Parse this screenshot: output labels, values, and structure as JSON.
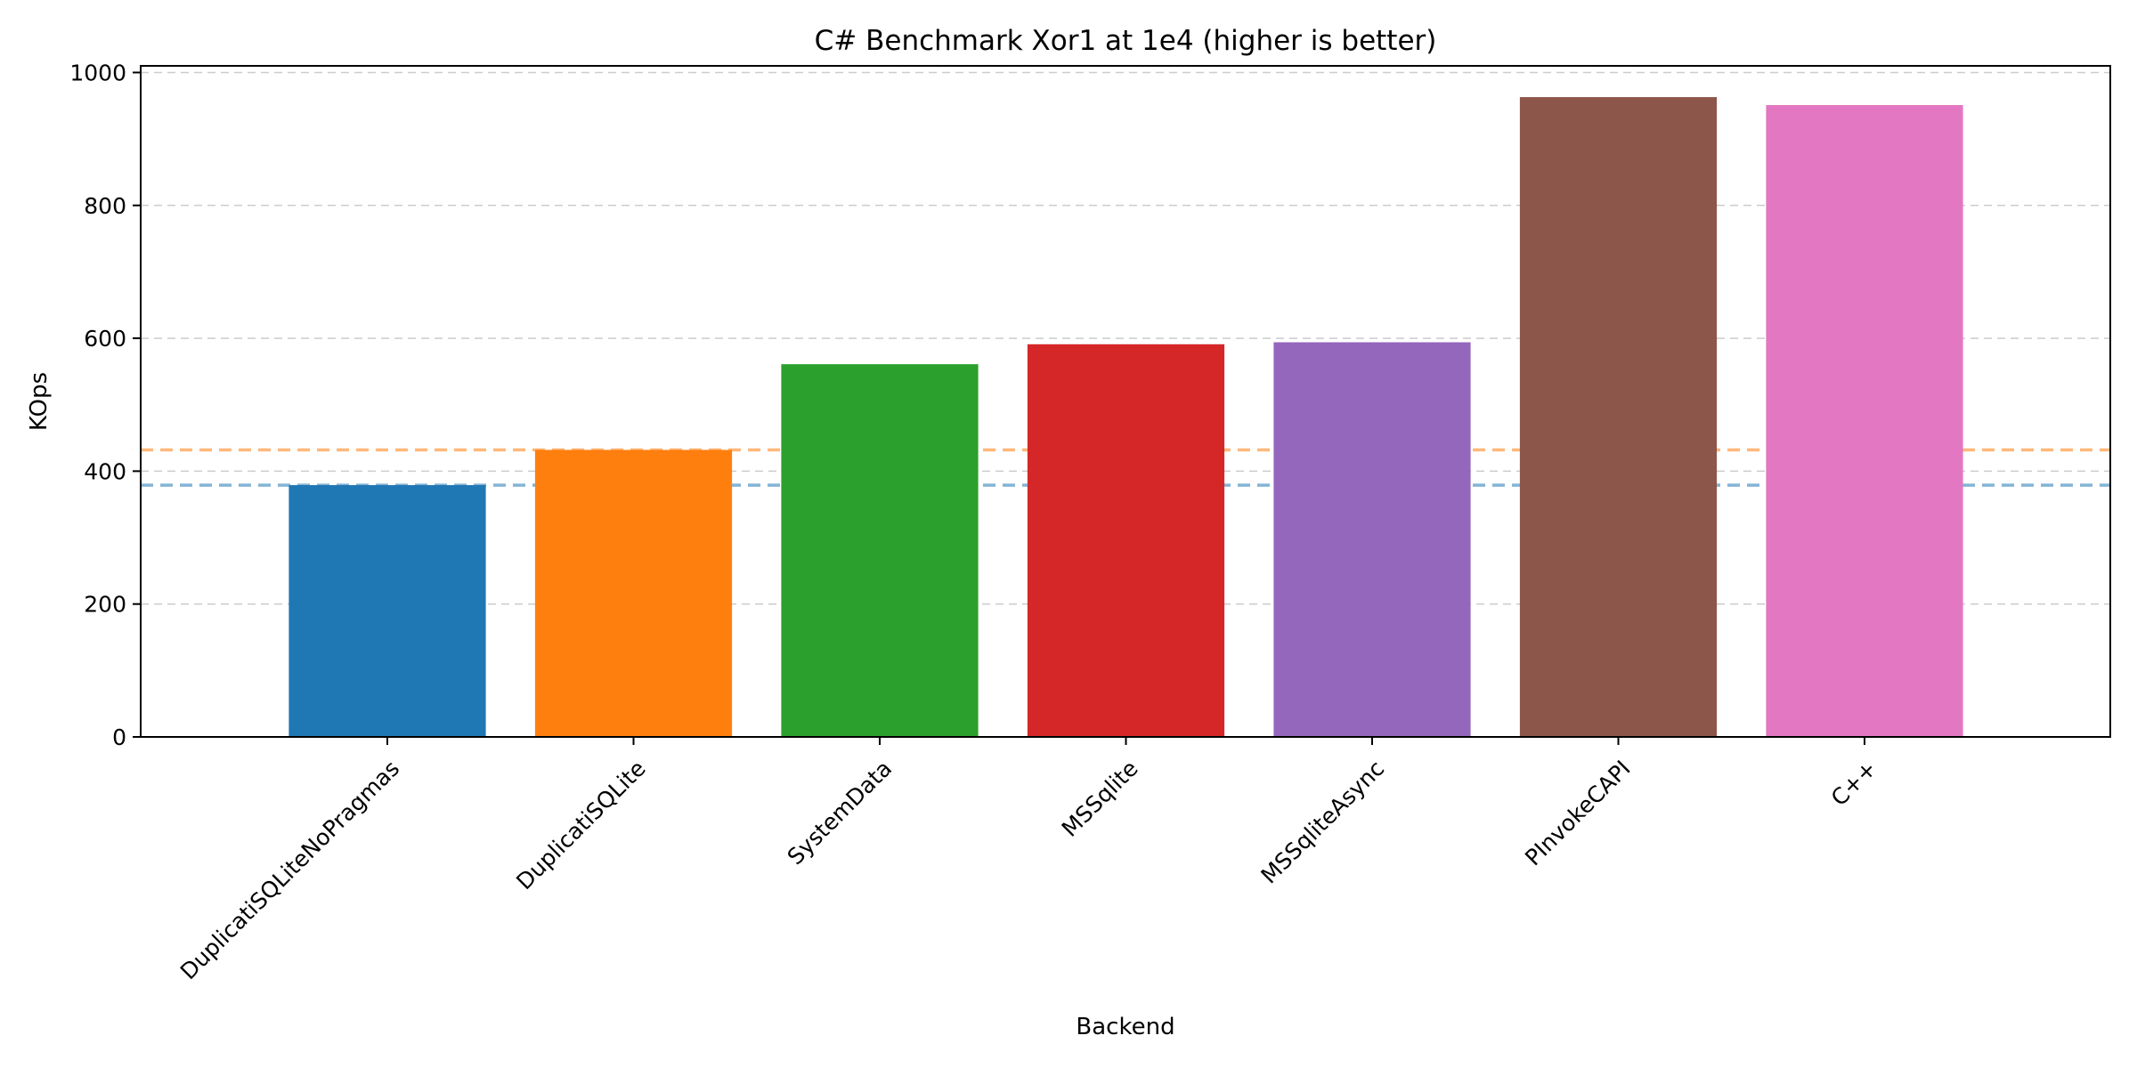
{
  "chart_data": {
    "type": "bar",
    "title": "C# Benchmark Xor1 at 1e4 (higher is better)",
    "xlabel": "Backend",
    "ylabel": "KOps",
    "categories": [
      "DuplicatiSQLiteNoPragmas",
      "DuplicatiSQLite",
      "SystemData",
      "MSSqlite",
      "MSSqliteAsync",
      "PInvokeCAPI",
      "C++"
    ],
    "values": [
      379,
      432,
      561,
      591,
      594,
      963,
      951
    ],
    "colors": [
      "#1f77b4",
      "#ff7f0e",
      "#2ca02c",
      "#d62728",
      "#9467bd",
      "#8c564b",
      "#e377c2"
    ],
    "ylim": [
      0,
      1010
    ],
    "yticks": [
      0,
      200,
      400,
      600,
      800,
      1000
    ],
    "reference_lines": [
      {
        "value": 379,
        "color": "#1f77b4"
      },
      {
        "value": 432,
        "color": "#ff7f0e"
      }
    ],
    "grid": "y",
    "legend": "none"
  }
}
